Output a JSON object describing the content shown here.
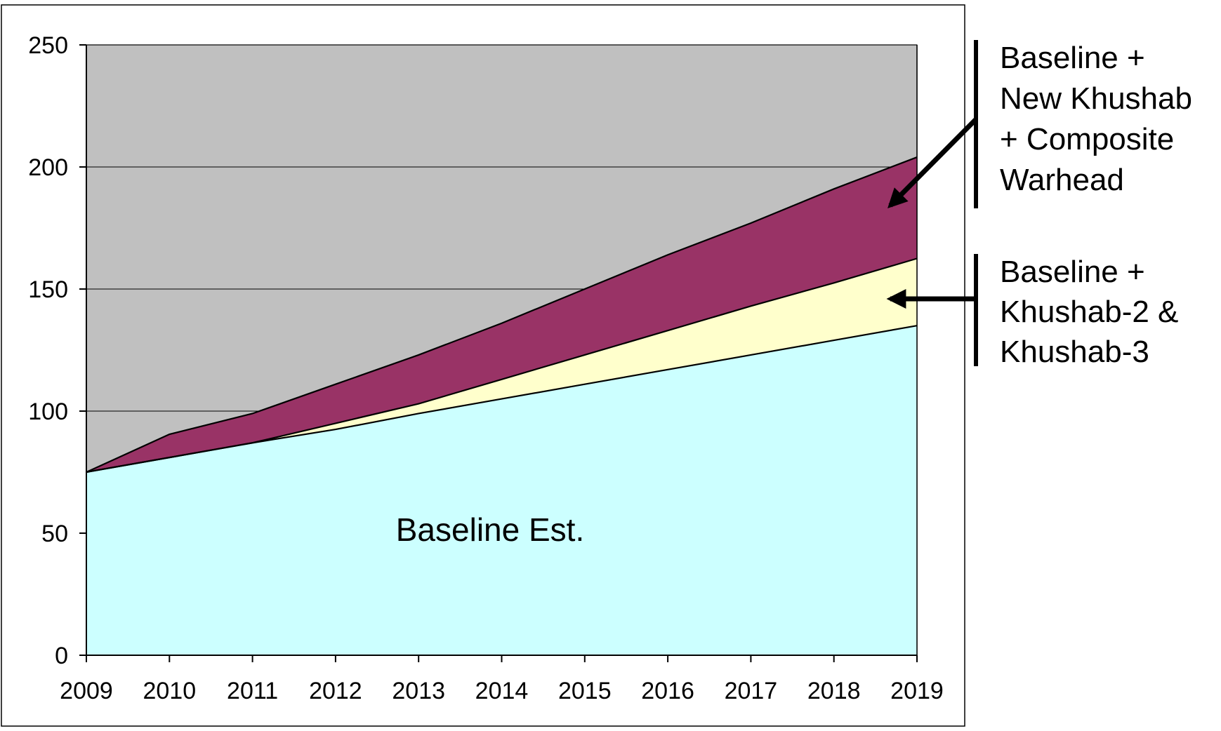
{
  "chart_data": {
    "type": "area",
    "stacked": true,
    "x": [
      2009,
      2010,
      2011,
      2012,
      2013,
      2014,
      2015,
      2016,
      2017,
      2018,
      2019
    ],
    "ylim": [
      0,
      250
    ],
    "yticks": [
      0,
      50,
      100,
      150,
      200,
      250
    ],
    "grid": true,
    "series": [
      {
        "name": "Baseline Est.",
        "color": "#ccffff",
        "values": [
          75,
          81,
          87,
          92.5,
          99,
          105,
          111,
          117,
          123,
          129,
          135
        ]
      },
      {
        "name": "Baseline + Khushab-2 & Khushab-3",
        "color": "#ffffcc",
        "values": [
          75,
          81,
          87,
          95,
          103,
          113,
          123,
          133,
          143,
          152.5,
          162.5
        ]
      },
      {
        "name": "Baseline + New Khushab + Composite Warhead",
        "color": "#993366",
        "values": [
          75,
          90.5,
          99,
          111,
          123,
          136,
          150,
          164,
          177,
          191,
          204
        ]
      }
    ],
    "plot_background": "#c0c0c0",
    "annotations": {
      "baseline_label": "Baseline Est.",
      "top_label_lines": [
        "Baseline +",
        "New Khushab",
        "+ Composite",
        "Warhead"
      ],
      "middle_label_lines": [
        "Baseline +",
        "Khushab-2 &",
        "Khushab-3"
      ]
    }
  }
}
